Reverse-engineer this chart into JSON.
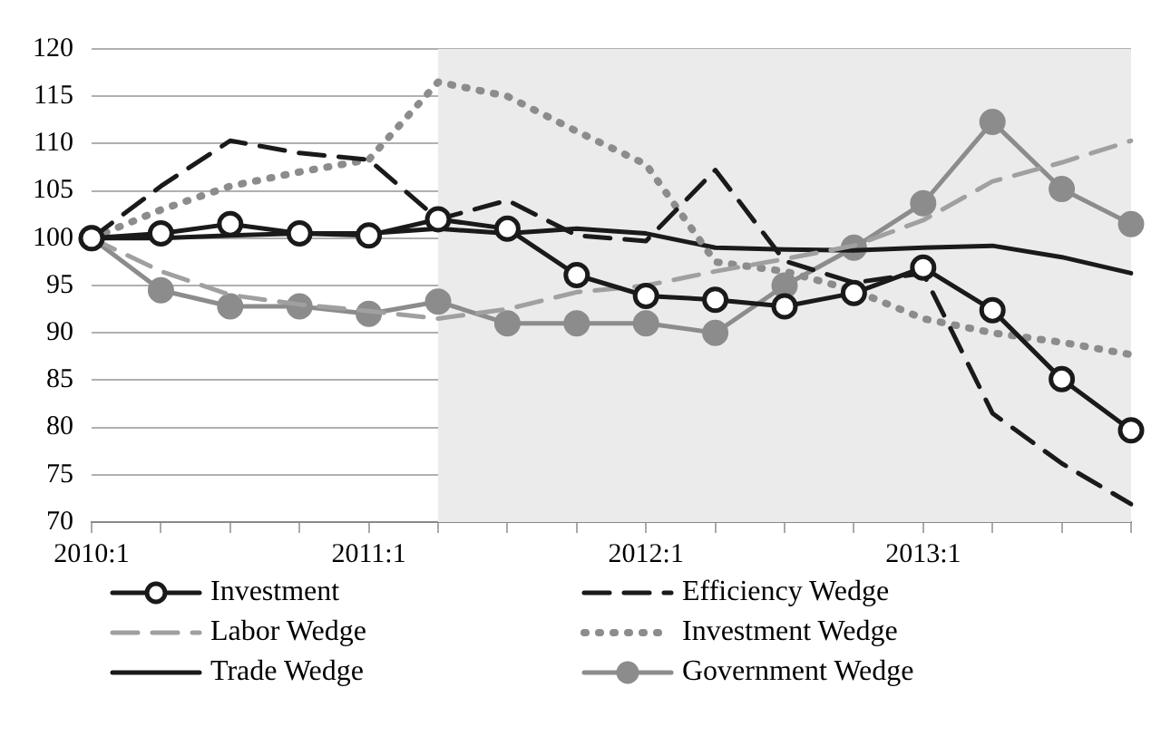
{
  "chart_data": {
    "type": "line",
    "categories": [
      "2010:1",
      null,
      null,
      null,
      "2011:1",
      null,
      null,
      null,
      "2012:1",
      null,
      null,
      null,
      "2013:1",
      null,
      null,
      null
    ],
    "ylim": [
      70,
      120
    ],
    "yticks": [
      70,
      75,
      80,
      85,
      90,
      95,
      100,
      105,
      110,
      115,
      120
    ],
    "grid": "y",
    "legend": "bottom",
    "series": [
      {
        "name": "Investment",
        "color": "#1a1a1a",
        "marker": "circle",
        "line_style": "solid",
        "values": [
          100,
          100.5,
          101.5,
          100.5,
          100.3,
          102,
          101,
          96.1,
          93.9,
          93.5,
          92.8,
          94.2,
          96.9,
          92.4,
          85.1,
          79.7
        ]
      },
      {
        "name": "Efficiency Wedge",
        "color": "#1a1a1a",
        "marker": "none",
        "line_style": "dashed",
        "values": [
          100,
          105.5,
          110.3,
          109,
          108.3,
          102,
          104,
          100.3,
          99.7,
          107.2,
          97.6,
          95.3,
          96.3,
          81.5,
          76.2,
          71.9
        ]
      },
      {
        "name": "Labor Wedge",
        "color": "#a0a0a0",
        "marker": "none",
        "line_style": "dashed",
        "values": [
          100,
          96.5,
          94,
          93,
          92.3,
          91.5,
          92.5,
          94.3,
          95,
          96.5,
          97.8,
          99.2,
          101.9,
          106,
          108,
          110.3
        ]
      },
      {
        "name": "Investment Wedge",
        "color": "#8c8c8c",
        "marker": "none",
        "line_style": "dotted",
        "values": [
          100,
          103,
          105.5,
          107,
          108.3,
          116.5,
          115,
          111.3,
          107.8,
          97.5,
          96.5,
          94.5,
          91.5,
          90,
          89,
          87.7
        ]
      },
      {
        "name": "Trade Wedge",
        "color": "#1a1a1a",
        "marker": "none",
        "line_style": "solid",
        "values": [
          100,
          100,
          100.3,
          100.5,
          100.5,
          101,
          100.5,
          101,
          100.5,
          99,
          98.8,
          98.7,
          99,
          99.2,
          98,
          96.3
        ]
      },
      {
        "name": "Government Wedge",
        "color": "#8c8c8c",
        "marker": "circle",
        "line_style": "solid",
        "values": [
          100,
          94.5,
          92.8,
          92.8,
          92,
          93.3,
          91,
          91,
          91,
          90,
          95,
          99,
          103.7,
          112.3,
          105.2,
          101.5
        ]
      }
    ]
  }
}
